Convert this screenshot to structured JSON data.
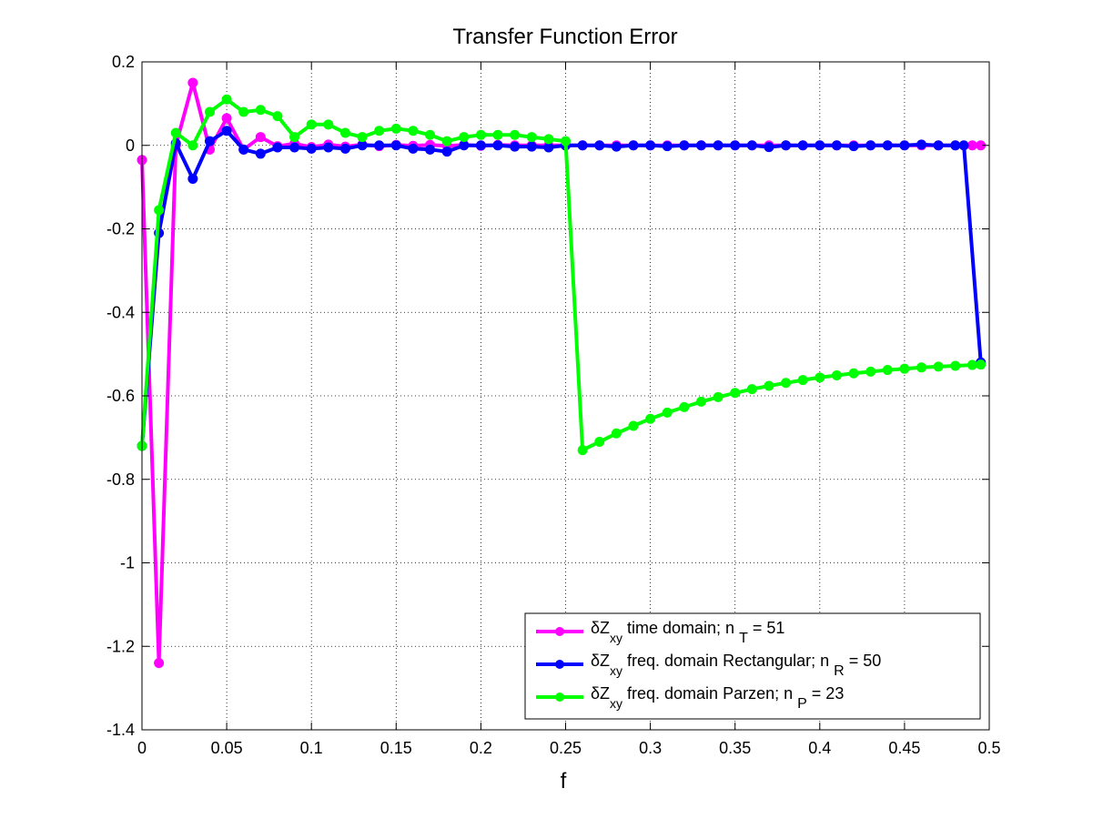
{
  "chart_data": {
    "type": "line",
    "title": "Transfer Function Error",
    "xlabel": "f",
    "ylabel": "",
    "xlim": [
      0,
      0.5
    ],
    "ylim": [
      -1.4,
      0.2
    ],
    "xticks": [
      "0",
      "0.05",
      "0.1",
      "0.15",
      "0.2",
      "0.25",
      "0.3",
      "0.35",
      "0.4",
      "0.45",
      "0.5"
    ],
    "yticks": [
      "0.2",
      "0",
      "-0.2",
      "-0.4",
      "-0.6",
      "-0.8",
      "-1",
      "-1.2",
      "-1.4"
    ],
    "grid": true,
    "legend_position": "bottom-right",
    "series": [
      {
        "name": "δZxy time domain; n T = 51",
        "legend_parts": {
          "pre": "δZ",
          "sub1": "xy",
          "mid": " time domain; n ",
          "sub2": "T",
          "post": " = 51"
        },
        "color": "#ff00ff",
        "x": [
          0,
          0.01,
          0.02,
          0.03,
          0.04,
          0.05,
          0.06,
          0.07,
          0.08,
          0.09,
          0.1,
          0.11,
          0.12,
          0.13,
          0.14,
          0.15,
          0.16,
          0.17,
          0.18,
          0.19,
          0.2,
          0.21,
          0.22,
          0.23,
          0.24,
          0.25,
          0.26,
          0.27,
          0.28,
          0.29,
          0.3,
          0.31,
          0.32,
          0.33,
          0.34,
          0.35,
          0.36,
          0.37,
          0.38,
          0.39,
          0.4,
          0.41,
          0.42,
          0.43,
          0.44,
          0.45,
          0.46,
          0.47,
          0.48,
          0.49,
          0.495
        ],
        "y": [
          -0.035,
          -1.24,
          0.0,
          0.15,
          -0.01,
          0.065,
          -0.01,
          0.02,
          -0.002,
          0.004,
          -0.004,
          0.002,
          -0.003,
          0.002,
          -0.002,
          0.001,
          -0.001,
          0.001,
          -0.001,
          0.001,
          -0.001,
          0.001,
          0.0,
          0.0,
          0.0,
          0.0,
          0.0,
          0.0,
          0.0,
          0.0,
          0.0,
          0.0,
          0.0,
          0.0,
          0.0,
          0.0,
          0.0,
          0.0,
          0.0,
          0.0,
          0.0,
          0.0,
          0.0,
          0.0,
          0.0,
          0.0,
          0.0,
          0.0,
          0.0,
          0.0,
          0.0
        ]
      },
      {
        "name": "δZxy freq. domain Rectangular; n R = 50",
        "legend_parts": {
          "pre": "δZ",
          "sub1": "xy",
          "mid": " freq. domain Rectangular; n ",
          "sub2": "R",
          "post": " = 50"
        },
        "color": "#0000ff",
        "x": [
          0,
          0.01,
          0.02,
          0.03,
          0.04,
          0.05,
          0.06,
          0.07,
          0.08,
          0.09,
          0.1,
          0.11,
          0.12,
          0.13,
          0.14,
          0.15,
          0.16,
          0.17,
          0.18,
          0.19,
          0.2,
          0.21,
          0.22,
          0.23,
          0.24,
          0.25,
          0.26,
          0.27,
          0.28,
          0.29,
          0.3,
          0.31,
          0.32,
          0.33,
          0.34,
          0.35,
          0.36,
          0.37,
          0.38,
          0.39,
          0.4,
          0.41,
          0.42,
          0.43,
          0.44,
          0.45,
          0.46,
          0.47,
          0.48,
          0.485,
          0.495
        ],
        "y": [
          -0.72,
          -0.21,
          0.005,
          -0.08,
          0.01,
          0.035,
          -0.01,
          -0.02,
          -0.005,
          -0.005,
          -0.008,
          -0.005,
          -0.008,
          0.0,
          0.0,
          0.0,
          -0.008,
          -0.01,
          -0.015,
          0.0,
          0.0,
          0.0,
          -0.003,
          -0.003,
          -0.005,
          0.0,
          0.0,
          0.0,
          -0.003,
          0.0,
          0.0,
          -0.002,
          0.0,
          0.0,
          0.0,
          0.0,
          0.0,
          -0.004,
          0.0,
          0.0,
          0.0,
          0.0,
          -0.002,
          0.0,
          0.0,
          0.0,
          0.002,
          0.0,
          0.0,
          0.0,
          -0.52
        ]
      },
      {
        "name": "δZxy freq. domain Parzen; n P = 23",
        "legend_parts": {
          "pre": "δZ",
          "sub1": "xy",
          "mid": " freq. domain Parzen; n ",
          "sub2": "P",
          "post": " = 23"
        },
        "color": "#00ff00",
        "x": [
          0,
          0.01,
          0.02,
          0.03,
          0.04,
          0.05,
          0.06,
          0.07,
          0.08,
          0.09,
          0.1,
          0.11,
          0.12,
          0.13,
          0.14,
          0.15,
          0.16,
          0.17,
          0.18,
          0.19,
          0.2,
          0.21,
          0.22,
          0.23,
          0.24,
          0.25,
          0.26,
          0.27,
          0.28,
          0.29,
          0.3,
          0.31,
          0.32,
          0.33,
          0.34,
          0.35,
          0.36,
          0.37,
          0.38,
          0.39,
          0.4,
          0.41,
          0.42,
          0.43,
          0.44,
          0.45,
          0.46,
          0.47,
          0.48,
          0.49,
          0.495
        ],
        "y": [
          -0.72,
          -0.155,
          0.03,
          0.0,
          0.08,
          0.11,
          0.08,
          0.085,
          0.07,
          0.02,
          0.05,
          0.05,
          0.03,
          0.02,
          0.035,
          0.04,
          0.035,
          0.025,
          0.01,
          0.02,
          0.025,
          0.025,
          0.025,
          0.02,
          0.015,
          0.01,
          -0.73,
          -0.71,
          -0.69,
          -0.672,
          -0.655,
          -0.64,
          -0.627,
          -0.614,
          -0.603,
          -0.593,
          -0.584,
          -0.576,
          -0.569,
          -0.562,
          -0.556,
          -0.551,
          -0.546,
          -0.542,
          -0.538,
          -0.535,
          -0.532,
          -0.53,
          -0.528,
          -0.526,
          -0.525
        ]
      }
    ]
  }
}
